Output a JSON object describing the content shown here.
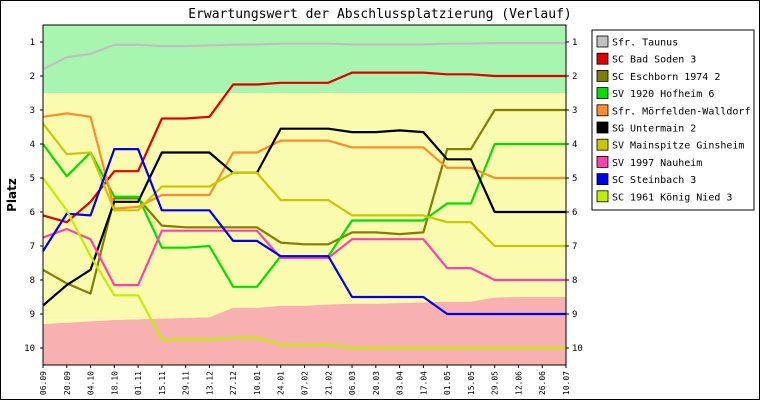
{
  "chart_data": {
    "type": "line",
    "title": "Erwartungswert der Abschlussplatzierung (Verlauf)",
    "ylabel": "Platz",
    "xlabel": "",
    "ylim": [
      0.5,
      10.5
    ],
    "y_inverted": true,
    "y_ticks": [
      1,
      2,
      3,
      4,
      5,
      6,
      7,
      8,
      9,
      10
    ],
    "categories": [
      "06.09",
      "20.09",
      "04.10",
      "18.10",
      "01.11",
      "15.11",
      "29.11",
      "13.12",
      "27.12",
      "10.01",
      "24.01",
      "07.02",
      "21.02",
      "06.03",
      "20.03",
      "03.04",
      "17.04",
      "01.05",
      "15.05",
      "29.05",
      "12.06",
      "26.06",
      "10.07"
    ],
    "zones": [
      {
        "color": "#a8f5b0",
        "from_rank": 0.5,
        "to_rank": 2.5
      },
      {
        "color": "#fbfbb0",
        "from_rank": 2.5,
        "to_rank": 9.1
      },
      {
        "color": "#f8b0b0",
        "from_rank": 9.1,
        "to_rank": 10.5
      }
    ],
    "relegation_boundary": [
      9.3,
      9.26,
      9.22,
      9.18,
      9.16,
      9.14,
      9.12,
      9.1,
      8.82,
      8.82,
      8.76,
      8.76,
      8.72,
      8.7,
      8.7,
      8.68,
      8.66,
      8.64,
      8.64,
      8.52,
      8.5,
      8.5,
      8.5
    ],
    "series": [
      {
        "name": "Sfr. Taunus",
        "color": "#c0c0c0",
        "values": [
          1.8,
          1.45,
          1.35,
          1.08,
          1.08,
          1.12,
          1.12,
          1.1,
          1.08,
          1.07,
          1.05,
          1.05,
          1.05,
          1.07,
          1.07,
          1.07,
          1.07,
          1.05,
          1.05,
          1.03,
          1.03,
          1.03,
          1.03
        ]
      },
      {
        "name": "SC Bad Soden 3",
        "color": "#e00000",
        "values": [
          6.1,
          6.3,
          5.7,
          4.8,
          4.8,
          3.25,
          3.25,
          3.2,
          2.25,
          2.25,
          2.2,
          2.2,
          2.2,
          1.9,
          1.9,
          1.9,
          1.9,
          1.95,
          1.95,
          2.0,
          2.0,
          2.0,
          2.0
        ]
      },
      {
        "name": "SC Eschborn 1974 2",
        "color": "#808000",
        "values": [
          7.7,
          8.1,
          8.4,
          5.6,
          5.6,
          6.4,
          6.45,
          6.45,
          6.45,
          6.45,
          6.9,
          6.95,
          6.95,
          6.6,
          6.6,
          6.65,
          6.6,
          4.15,
          4.15,
          3.0,
          3.0,
          3.0,
          3.0
        ]
      },
      {
        "name": "SV 1920 Hofheim 6",
        "color": "#00e000",
        "values": [
          4.0,
          4.95,
          4.25,
          5.55,
          5.55,
          7.05,
          7.05,
          7.0,
          8.2,
          8.2,
          7.3,
          7.3,
          7.3,
          6.25,
          6.25,
          6.25,
          6.25,
          5.75,
          5.75,
          4.0,
          4.0,
          4.0,
          4.0
        ]
      },
      {
        "name": "Sfr. Mörfelden-Walldorf",
        "color": "#ff8c28",
        "values": [
          3.2,
          3.1,
          3.2,
          5.9,
          5.85,
          5.5,
          5.5,
          5.5,
          4.25,
          4.25,
          3.9,
          3.9,
          3.9,
          4.1,
          4.1,
          4.1,
          4.1,
          4.7,
          4.7,
          5.0,
          5.0,
          5.0,
          5.0
        ]
      },
      {
        "name": "SG Untermain 2",
        "color": "#000000",
        "values": [
          8.75,
          8.15,
          7.7,
          5.7,
          5.7,
          4.25,
          4.25,
          4.25,
          4.85,
          4.85,
          3.55,
          3.55,
          3.55,
          3.65,
          3.65,
          3.6,
          3.65,
          4.45,
          4.45,
          6.0,
          6.0,
          6.0,
          6.0
        ]
      },
      {
        "name": "SV Mainspitze Ginsheim",
        "color": "#c8c800",
        "values": [
          3.4,
          4.3,
          4.25,
          5.95,
          5.95,
          5.25,
          5.25,
          5.25,
          4.85,
          4.85,
          5.65,
          5.65,
          5.65,
          6.1,
          6.1,
          6.1,
          6.1,
          6.3,
          6.3,
          7.0,
          7.0,
          7.0,
          7.0
        ]
      },
      {
        "name": "SV 1997 Nauheim",
        "color": "#ff40b0",
        "values": [
          6.75,
          6.5,
          6.8,
          8.15,
          8.15,
          6.55,
          6.55,
          6.55,
          6.55,
          6.55,
          7.35,
          7.35,
          7.35,
          6.8,
          6.8,
          6.8,
          6.8,
          7.65,
          7.65,
          8.0,
          8.0,
          8.0,
          8.0
        ]
      },
      {
        "name": "SC Steinbach 3",
        "color": "#0000f0",
        "values": [
          7.15,
          6.05,
          6.1,
          4.15,
          4.15,
          5.95,
          5.95,
          5.95,
          6.85,
          6.85,
          7.3,
          7.3,
          7.3,
          8.5,
          8.5,
          8.5,
          8.5,
          9.0,
          9.0,
          9.0,
          9.0,
          9.0,
          9.0
        ]
      },
      {
        "name": "SC 1961 König Nied 3",
        "color": "#c0f000",
        "values": [
          5.0,
          5.95,
          7.3,
          8.45,
          8.45,
          9.75,
          9.75,
          9.75,
          9.7,
          9.7,
          9.9,
          9.9,
          9.9,
          10.0,
          10.0,
          10.0,
          10.0,
          10.0,
          10.0,
          10.0,
          10.0,
          10.0,
          10.0
        ]
      }
    ]
  }
}
